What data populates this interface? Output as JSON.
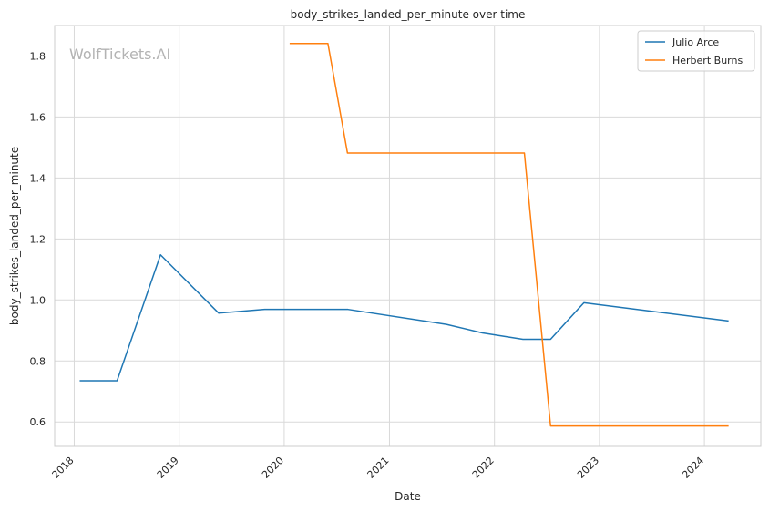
{
  "chart_data": {
    "type": "line",
    "title": "body_strikes_landed_per_minute over time",
    "xlabel": "Date",
    "ylabel": "body_strikes_landed_per_minute",
    "watermark": "WolfTickets.AI",
    "x_ticks": [
      "2018",
      "2019",
      "2020",
      "2021",
      "2022",
      "2023",
      "2024"
    ],
    "y_ticks": [
      "0.6",
      "0.8",
      "1.0",
      "1.2",
      "1.4",
      "1.6",
      "1.8"
    ],
    "xlim": [
      "2017-10-25",
      "2024-07-15"
    ],
    "ylim": [
      0.52,
      1.9
    ],
    "grid": true,
    "legend_position": "top-right",
    "series": [
      {
        "name": "Julio Arce",
        "color": "#1f77b4",
        "step": false,
        "points": [
          [
            "2018-01-20",
            0.735
          ],
          [
            "2018-05-30",
            0.735
          ],
          [
            "2018-10-28",
            1.148
          ],
          [
            "2019-05-18",
            0.957
          ],
          [
            "2019-10-25",
            0.969
          ],
          [
            "2020-08-10",
            0.969
          ],
          [
            "2021-07-18",
            0.92
          ],
          [
            "2021-11-20",
            0.892
          ],
          [
            "2022-04-10",
            0.871
          ],
          [
            "2022-07-15",
            0.871
          ],
          [
            "2022-11-08",
            0.991
          ],
          [
            "2024-03-25",
            0.931
          ]
        ]
      },
      {
        "name": "Herbert Burns",
        "color": "#ff7f0e",
        "step": true,
        "points": [
          [
            "2020-01-20",
            1.841
          ],
          [
            "2020-06-01",
            1.841
          ],
          [
            "2020-08-08",
            1.482
          ],
          [
            "2022-04-15",
            1.482
          ],
          [
            "2022-07-15",
            0.587
          ],
          [
            "2024-03-25",
            0.587
          ]
        ]
      }
    ]
  }
}
